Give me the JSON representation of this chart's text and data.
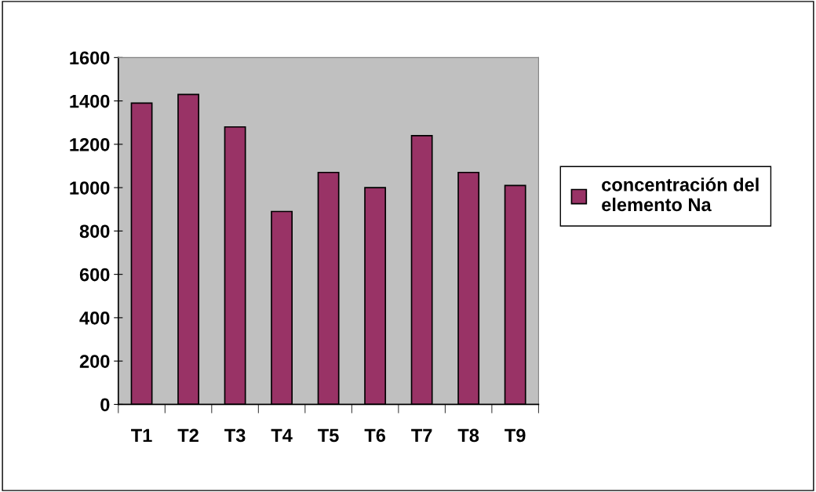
{
  "chart_data": {
    "type": "bar",
    "categories": [
      "T1",
      "T2",
      "T3",
      "T4",
      "T5",
      "T6",
      "T7",
      "T8",
      "T9"
    ],
    "series": [
      {
        "name": "concentración del\nelemento Na",
        "color": "#993366",
        "values": [
          1390,
          1430,
          1280,
          890,
          1070,
          1000,
          1240,
          1070,
          1010
        ]
      }
    ],
    "ylim": [
      0,
      1600
    ],
    "yticks": [
      0,
      200,
      400,
      600,
      800,
      1000,
      1200,
      1400,
      1600
    ],
    "grid": false,
    "legend": "right"
  }
}
